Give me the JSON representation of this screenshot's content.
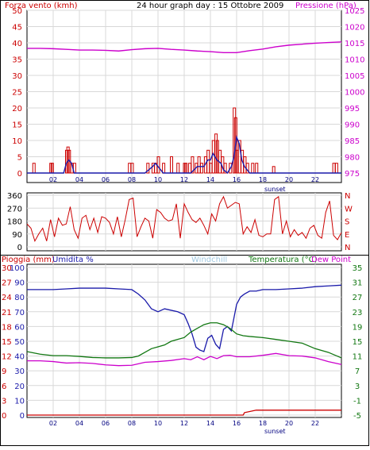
{
  "colors": {
    "wind": "#cc0000",
    "gust": "#1a1aaa",
    "pressure": "#cc00cc",
    "direction": "#cc0000",
    "humidity": "#1a1aaa",
    "windchill": "#a0c8e0",
    "temperature": "#117711",
    "dewpoint": "#cc00cc",
    "rain": "#cc0000",
    "grid": "#d8d8d8",
    "frame": "#000000",
    "tick_text": "#000080"
  },
  "chart_data": [
    {
      "type": "bar",
      "title": "24 hour graph day : 15 Ottobre 2009",
      "left_label": "Forza vento (kmh)",
      "right_label": "Pressione (hPa)",
      "x_ticks": [
        "02",
        "04",
        "06",
        "08",
        "10",
        "12",
        "14",
        "16",
        "18",
        "20",
        "22"
      ],
      "x_note": "sunset",
      "ylim": [
        0,
        50
      ],
      "y_ticks": [
        "0",
        "5",
        "10",
        "15",
        "20",
        "25",
        "30",
        "35",
        "40",
        "45",
        "50"
      ],
      "y2lim": [
        975,
        1025
      ],
      "y2_ticks": [
        "975",
        "980",
        "985",
        "990",
        "995",
        "1000",
        "1005",
        "1010",
        "1015",
        "1020",
        "1025"
      ],
      "xlim": [
        0,
        24
      ],
      "series": [
        {
          "key": "wind",
          "type": "bar",
          "x": [
            0.5,
            1.8,
            1.9,
            3.0,
            3.1,
            3.2,
            3.4,
            3.6,
            7.8,
            8.0,
            9.2,
            9.6,
            9.8,
            10.0,
            10.4,
            11.0,
            11.5,
            12.0,
            12.1,
            12.4,
            12.6,
            12.9,
            13.1,
            13.3,
            13.6,
            13.8,
            14.0,
            14.2,
            14.4,
            14.5,
            14.7,
            14.9,
            15.1,
            15.5,
            15.8,
            15.9,
            16.0,
            16.2,
            16.4,
            16.6,
            16.8,
            17.2,
            17.5,
            18.8,
            23.4,
            23.6
          ],
          "values": [
            3,
            3,
            3,
            7,
            8,
            7,
            3,
            3,
            3,
            3,
            3,
            3,
            3,
            5,
            3,
            5,
            3,
            3,
            3,
            3,
            5,
            3,
            5,
            3,
            5,
            7,
            3,
            10,
            12,
            10,
            7,
            5,
            3,
            3,
            20,
            17,
            7,
            10,
            7,
            5,
            3,
            3,
            3,
            2,
            3,
            3
          ]
        },
        {
          "key": "gust",
          "type": "line",
          "x": [
            0,
            2.8,
            3.0,
            3.2,
            3.4,
            3.6,
            9.0,
            9.6,
            9.8,
            10.0,
            10.2,
            10.4,
            12.5,
            13.0,
            13.5,
            13.8,
            14.0,
            14.2,
            14.5,
            14.8,
            15.0,
            15.3,
            15.6,
            15.8,
            16.0,
            16.2,
            16.4,
            16.6,
            16.8,
            17.0,
            24
          ],
          "values": [
            0,
            0,
            3,
            4,
            3,
            0,
            0,
            2,
            3,
            2,
            1,
            0,
            0,
            2,
            2,
            4,
            4,
            6,
            4,
            3,
            1,
            0,
            2,
            5,
            11,
            9,
            4,
            2,
            1,
            0,
            0
          ]
        },
        {
          "key": "pressure",
          "type": "line",
          "axis": "right",
          "x": [
            0,
            1,
            2,
            3,
            4,
            5,
            6,
            7,
            8,
            9,
            10,
            11,
            12,
            13,
            14,
            15,
            16,
            17,
            18,
            19,
            20,
            21,
            22,
            23,
            24
          ],
          "values": [
            1013.3,
            1013.3,
            1013.2,
            1013.0,
            1012.8,
            1012.8,
            1012.7,
            1012.5,
            1012.9,
            1013.2,
            1013.3,
            1013.0,
            1012.8,
            1012.5,
            1012.3,
            1012.0,
            1012.0,
            1012.6,
            1013.1,
            1013.8,
            1014.3,
            1014.6,
            1014.9,
            1015.1,
            1015.3
          ]
        }
      ]
    },
    {
      "type": "line",
      "y_ticks": [
        "0",
        "90",
        "180",
        "270",
        "360"
      ],
      "ylim": [
        0,
        360
      ],
      "right_ticks": [
        "N",
        "W",
        "S",
        "E",
        "N"
      ],
      "xlim": [
        0,
        24
      ],
      "series": [
        {
          "key": "direction",
          "x": [
            0,
            0.3,
            0.6,
            0.9,
            1.2,
            1.5,
            1.8,
            2.1,
            2.4,
            2.7,
            3.0,
            3.3,
            3.6,
            3.9,
            4.2,
            4.5,
            4.8,
            5.1,
            5.4,
            5.7,
            6.0,
            6.3,
            6.6,
            6.9,
            7.2,
            7.5,
            7.8,
            8.1,
            8.4,
            8.7,
            9.0,
            9.3,
            9.6,
            9.9,
            10.2,
            10.5,
            10.8,
            11.1,
            11.4,
            11.7,
            12.0,
            12.3,
            12.6,
            12.9,
            13.2,
            13.5,
            13.8,
            14.1,
            14.4,
            14.7,
            15.0,
            15.3,
            15.6,
            15.9,
            16.2,
            16.5,
            16.8,
            17.1,
            17.4,
            17.7,
            18.0,
            18.3,
            18.6,
            18.9,
            19.2,
            19.5,
            19.8,
            20.1,
            20.4,
            20.7,
            21.0,
            21.3,
            21.6,
            21.9,
            22.2,
            22.5,
            22.8,
            23.1,
            23.4,
            23.7,
            24.0
          ],
          "values": [
            160,
            130,
            40,
            90,
            130,
            40,
            190,
            70,
            200,
            150,
            160,
            280,
            120,
            60,
            200,
            220,
            120,
            200,
            100,
            210,
            200,
            170,
            90,
            210,
            70,
            190,
            330,
            340,
            70,
            140,
            200,
            180,
            60,
            260,
            240,
            200,
            180,
            190,
            300,
            60,
            300,
            240,
            190,
            170,
            200,
            150,
            90,
            230,
            180,
            300,
            350,
            270,
            290,
            310,
            300,
            90,
            140,
            100,
            190,
            80,
            70,
            90,
            90,
            330,
            350,
            90,
            180,
            70,
            120,
            80,
            100,
            60,
            130,
            150,
            80,
            60,
            240,
            320,
            80,
            50,
            100
          ]
        }
      ]
    },
    {
      "type": "line",
      "left_label_a": "Pioggia (mm)",
      "left_label_b": "Umidita %",
      "center_label": "Windchill",
      "right_label_a": "Temperatura (°C)",
      "right_label_b": "Dew Point",
      "x_ticks": [
        "02",
        "04",
        "06",
        "08",
        "10",
        "12",
        "14",
        "16",
        "18",
        "20",
        "22"
      ],
      "x_note": "sunset",
      "rain_ticks": [
        "0",
        "3",
        "6",
        "9",
        "12",
        "15",
        "18",
        "21",
        "24",
        "27",
        "30"
      ],
      "rain_lim": [
        0,
        30
      ],
      "hum_ticks": [
        "0",
        "10",
        "20",
        "30",
        "40",
        "50",
        "60",
        "70",
        "80",
        "90",
        "100"
      ],
      "hum_lim": [
        0,
        100
      ],
      "temp_ticks": [
        "-5",
        "-1",
        "3",
        "7",
        "11",
        "15",
        "19",
        "23",
        "27",
        "31",
        "35"
      ],
      "temp_lim": [
        -5,
        35
      ],
      "xlim": [
        0,
        24
      ],
      "series": [
        {
          "key": "humidity",
          "axis": "humidity",
          "x": [
            0,
            1,
            2,
            3,
            4,
            5,
            6,
            7,
            8,
            8.5,
            9,
            9.5,
            10,
            10.5,
            11,
            11.5,
            12,
            12.3,
            12.6,
            12.9,
            13.2,
            13.5,
            13.8,
            14.1,
            14.4,
            14.7,
            15.0,
            15.3,
            15.6,
            15.8,
            16.0,
            16.3,
            16.6,
            17.0,
            17.5,
            18,
            19,
            20,
            21,
            22,
            23,
            24
          ],
          "values": [
            85,
            85,
            85,
            85.5,
            86,
            86,
            86,
            85.5,
            85,
            82,
            78,
            72,
            70,
            72,
            71,
            70,
            68,
            62,
            55,
            46,
            44,
            43,
            52,
            54,
            48,
            45,
            58,
            60,
            57,
            66,
            75,
            80,
            82,
            84,
            84,
            85,
            85,
            85.5,
            86,
            87,
            87.5,
            88
          ]
        },
        {
          "key": "temperature",
          "axis": "temperature",
          "x": [
            0,
            1,
            2,
            3,
            4,
            5,
            6,
            7,
            8,
            8.5,
            9,
            9.5,
            10,
            10.5,
            11,
            11.5,
            12,
            12.5,
            13,
            13.5,
            14,
            14.5,
            15,
            15.5,
            16,
            16.5,
            17,
            18,
            19,
            20,
            21,
            22,
            23,
            24
          ],
          "values": [
            12.2,
            11.5,
            11.1,
            11.1,
            10.9,
            10.6,
            10.5,
            10.5,
            10.6,
            11,
            12,
            13,
            13.5,
            14,
            15,
            15.5,
            16,
            17.5,
            18.5,
            19.5,
            20,
            20,
            19.5,
            18.5,
            17,
            16.5,
            16.3,
            16,
            15.5,
            15,
            14.5,
            13,
            12,
            10.5
          ]
        },
        {
          "key": "dewpoint",
          "axis": "temperature",
          "x": [
            0,
            1,
            2,
            3,
            4,
            5,
            6,
            7,
            8,
            9,
            10,
            11,
            12,
            12.5,
            13,
            13.5,
            14,
            14.5,
            15,
            15.5,
            16,
            17,
            18,
            19,
            20,
            21,
            22,
            23,
            24
          ],
          "values": [
            9.7,
            9.7,
            9.5,
            9.1,
            9.2,
            9.0,
            8.6,
            8.4,
            8.5,
            9.3,
            9.5,
            9.8,
            10.3,
            10.0,
            10.8,
            10.0,
            10.9,
            10.3,
            11.1,
            11.2,
            10.8,
            10.8,
            11.2,
            11.7,
            11.1,
            11.0,
            10.5,
            9.5,
            8.7
          ]
        },
        {
          "key": "rain",
          "axis": "rain",
          "x": [
            0,
            16.5,
            16.6,
            17.5,
            24
          ],
          "values": [
            0,
            0,
            0.5,
            1,
            1
          ]
        }
      ]
    }
  ]
}
